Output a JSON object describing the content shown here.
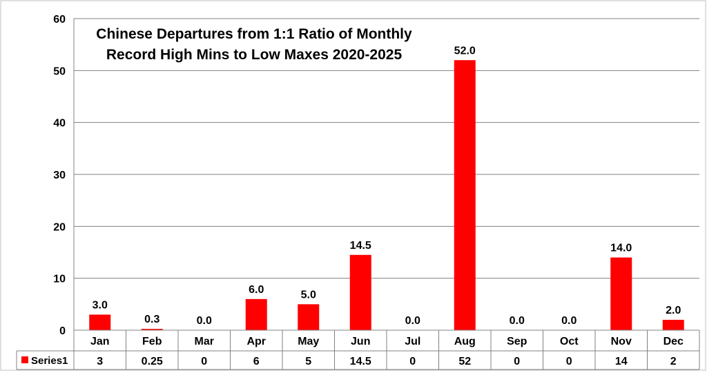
{
  "chart_data": {
    "type": "bar",
    "title_lines": [
      "Chinese Departures from 1:1 Ratio of Monthly",
      "Record High Mins to Low Maxes 2020-2025"
    ],
    "categories": [
      "Jan",
      "Feb",
      "Mar",
      "Apr",
      "May",
      "Jun",
      "Jul",
      "Aug",
      "Sep",
      "Oct",
      "Nov",
      "Dec"
    ],
    "series": [
      {
        "name": "Series1",
        "values": [
          3,
          0.25,
          0,
          6,
          5,
          14.5,
          0,
          52,
          0,
          0,
          14,
          2
        ],
        "data_labels": [
          "3.0",
          "0.3",
          "0.0",
          "6.0",
          "5.0",
          "14.5",
          "0.0",
          "52.0",
          "0.0",
          "0.0",
          "14.0",
          "2.0"
        ],
        "table_values": [
          "3",
          "0.25",
          "0",
          "6",
          "5",
          "14.5",
          "0",
          "52",
          "0",
          "0",
          "14",
          "2"
        ],
        "color": "#ff0000"
      }
    ],
    "ylim": [
      0,
      60
    ],
    "yticks": [
      "0",
      "10",
      "20",
      "30",
      "40",
      "50",
      "60"
    ],
    "grid": true,
    "data_table": true,
    "legend_key_in_table": true
  }
}
